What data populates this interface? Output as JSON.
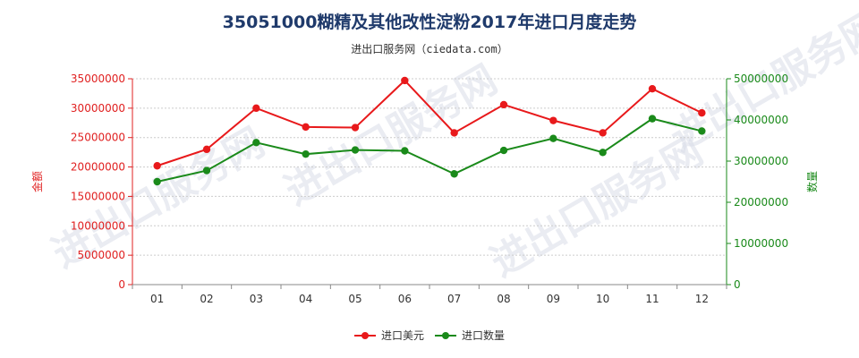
{
  "chart_data": {
    "type": "line",
    "title": "35051000糊精及其他改性淀粉2017年进口月度走势",
    "subtitle": "进出口服务网（ciedata.com）",
    "categories": [
      "01",
      "02",
      "03",
      "04",
      "05",
      "06",
      "07",
      "08",
      "09",
      "10",
      "11",
      "12"
    ],
    "y_left": {
      "label": "金额",
      "min": 0,
      "max": 35000000,
      "step": 5000000,
      "ticks": [
        "0",
        "5000000",
        "10000000",
        "15000000",
        "20000000",
        "25000000",
        "30000000",
        "35000000"
      ]
    },
    "y_right": {
      "label": "数量",
      "min": 0,
      "max": 50000000,
      "step": 10000000,
      "ticks": [
        "0",
        "10000000",
        "20000000",
        "30000000",
        "40000000",
        "50000000"
      ]
    },
    "series": [
      {
        "name": "进口美元",
        "axis": "left",
        "color": "#e8191b",
        "values": [
          20200000,
          23000000,
          30000000,
          26800000,
          26700000,
          34700000,
          25800000,
          30600000,
          27900000,
          25800000,
          33300000,
          29200000
        ]
      },
      {
        "name": "进口数量",
        "axis": "right",
        "color": "#1a8a1a",
        "values": [
          25000000,
          27700000,
          34500000,
          31700000,
          32700000,
          32500000,
          26900000,
          32600000,
          35500000,
          32100000,
          40300000,
          37300000
        ]
      }
    ],
    "grid": true,
    "legend": "bottom-center"
  },
  "watermark": "进出口服务网"
}
